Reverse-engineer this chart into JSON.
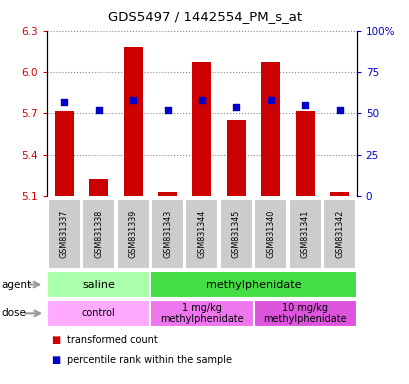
{
  "title": "GDS5497 / 1442554_PM_s_at",
  "samples": [
    "GSM831337",
    "GSM831338",
    "GSM831339",
    "GSM831343",
    "GSM831344",
    "GSM831345",
    "GSM831340",
    "GSM831341",
    "GSM831342"
  ],
  "bar_values": [
    5.72,
    5.22,
    6.18,
    5.13,
    6.07,
    5.65,
    6.07,
    5.72,
    5.13
  ],
  "percentile_values": [
    57,
    52,
    58,
    52,
    58,
    54,
    58,
    55,
    52
  ],
  "ylim": [
    5.1,
    6.3
  ],
  "yticks_left": [
    5.1,
    5.4,
    5.7,
    6.0,
    6.3
  ],
  "yticks_right": [
    0,
    25,
    50,
    75,
    100
  ],
  "bar_color": "#cc0000",
  "dot_color": "#0000cc",
  "bar_bottom": 5.1,
  "agent_row": [
    {
      "label": "saline",
      "span": [
        0,
        3
      ],
      "color": "#aaffaa"
    },
    {
      "label": "methylphenidate",
      "span": [
        3,
        9
      ],
      "color": "#44dd44"
    }
  ],
  "dose_row": [
    {
      "label": "control",
      "span": [
        0,
        3
      ],
      "color": "#ffaaff"
    },
    {
      "label": "1 mg/kg\nmethylphenidate",
      "span": [
        3,
        6
      ],
      "color": "#ee77ee"
    },
    {
      "label": "10 mg/kg\nmethylphenidate",
      "span": [
        6,
        9
      ],
      "color": "#dd55dd"
    }
  ],
  "legend_items": [
    {
      "color": "#cc0000",
      "label": "transformed count"
    },
    {
      "color": "#0000cc",
      "label": "percentile rank within the sample"
    }
  ],
  "bg_color": "#ffffff",
  "grid_color": "#888888",
  "tick_label_color_left": "#cc0000",
  "tick_label_color_right": "#0000cc",
  "sample_box_color": "#cccccc",
  "arrow_color": "#999999"
}
